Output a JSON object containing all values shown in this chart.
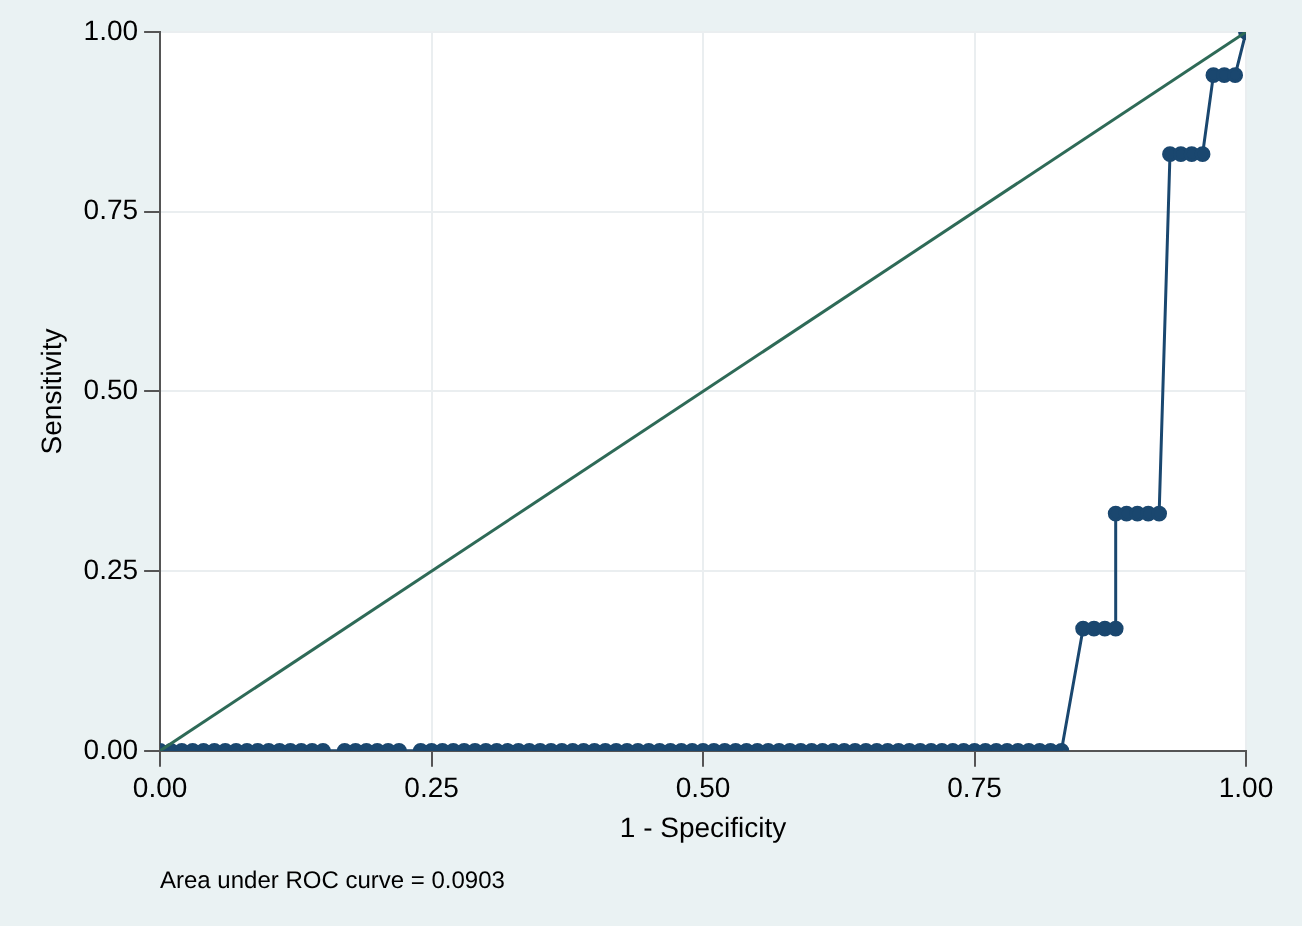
{
  "chart_data": {
    "type": "line",
    "xlabel": "1 - Specificity",
    "ylabel": "Sensitivity",
    "annotations": [
      "Area under ROC curve = 0.0903"
    ],
    "xlim": [
      0,
      1
    ],
    "ylim": [
      0,
      1
    ],
    "xticks": [
      {
        "value": 0,
        "label": "0.00"
      },
      {
        "value": 0.25,
        "label": "0.25"
      },
      {
        "value": 0.5,
        "label": "0.50"
      },
      {
        "value": 0.75,
        "label": "0.75"
      },
      {
        "value": 1,
        "label": "1.00"
      }
    ],
    "yticks": [
      {
        "value": 0,
        "label": "0.00"
      },
      {
        "value": 0.25,
        "label": "0.25"
      },
      {
        "value": 0.5,
        "label": "0.50"
      },
      {
        "value": 0.75,
        "label": "0.75"
      },
      {
        "value": 1,
        "label": "1.00"
      }
    ],
    "grid": true,
    "legend": false,
    "series": [
      {
        "color": "#2e6a57",
        "marker": "none",
        "x": [
          0,
          1
        ],
        "values": [
          0,
          1
        ]
      },
      {
        "color": "#1a476f",
        "marker": "circle",
        "x": [
          0,
          0.01,
          0.02,
          0.03,
          0.04,
          0.05,
          0.06,
          0.07,
          0.08,
          0.09,
          0.1,
          0.11,
          0.12,
          0.13,
          0.14,
          0.15,
          0.17,
          0.18,
          0.19,
          0.2,
          0.21,
          0.22,
          0.24,
          0.25,
          0.26,
          0.27,
          0.28,
          0.29,
          0.3,
          0.31,
          0.32,
          0.33,
          0.34,
          0.35,
          0.36,
          0.37,
          0.38,
          0.39,
          0.4,
          0.41,
          0.42,
          0.43,
          0.44,
          0.45,
          0.46,
          0.47,
          0.48,
          0.49,
          0.5,
          0.51,
          0.52,
          0.53,
          0.54,
          0.55,
          0.56,
          0.57,
          0.58,
          0.59,
          0.6,
          0.61,
          0.62,
          0.63,
          0.64,
          0.65,
          0.66,
          0.67,
          0.68,
          0.69,
          0.7,
          0.71,
          0.72,
          0.73,
          0.74,
          0.75,
          0.76,
          0.77,
          0.78,
          0.79,
          0.8,
          0.81,
          0.82,
          0.83,
          0.85,
          0.86,
          0.87,
          0.88,
          0.88,
          0.89,
          0.9,
          0.91,
          0.92,
          0.93,
          0.94,
          0.95,
          0.96,
          0.97,
          0.98,
          0.99,
          1
        ],
        "values": [
          0,
          0,
          0,
          0,
          0,
          0,
          0,
          0,
          0,
          0,
          0,
          0,
          0,
          0,
          0,
          0,
          0,
          0,
          0,
          0,
          0,
          0,
          0,
          0,
          0,
          0,
          0,
          0,
          0,
          0,
          0,
          0,
          0,
          0,
          0,
          0,
          0,
          0,
          0,
          0,
          0,
          0,
          0,
          0,
          0,
          0,
          0,
          0,
          0,
          0,
          0,
          0,
          0,
          0,
          0,
          0,
          0,
          0,
          0,
          0,
          0,
          0,
          0,
          0,
          0,
          0,
          0,
          0,
          0,
          0,
          0,
          0,
          0,
          0,
          0,
          0,
          0,
          0,
          0,
          0,
          0,
          0,
          0.17,
          0.17,
          0.17,
          0.17,
          0.33,
          0.33,
          0.33,
          0.33,
          0.33,
          0.83,
          0.83,
          0.83,
          0.83,
          0.94,
          0.94,
          0.94,
          1
        ]
      }
    ]
  }
}
